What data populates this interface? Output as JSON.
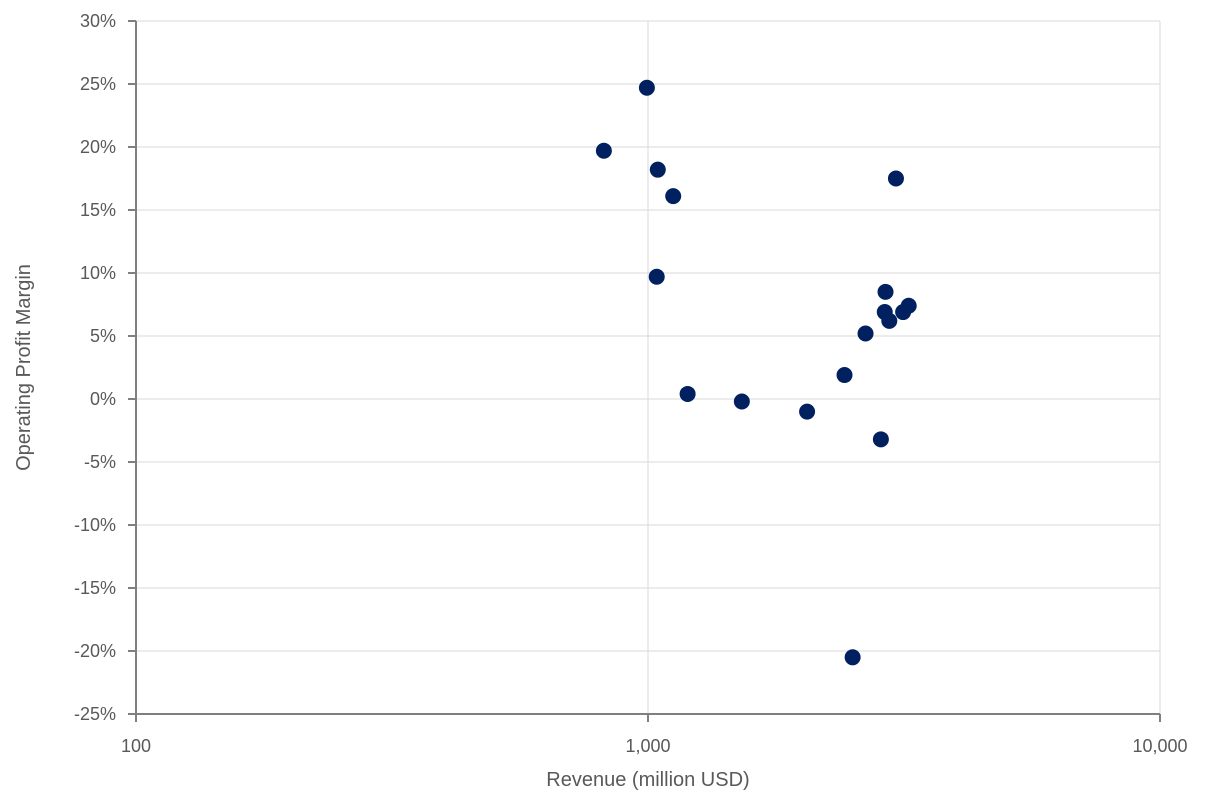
{
  "chart_data": {
    "type": "scatter",
    "xlabel": "Revenue (million USD)",
    "ylabel": "Operating Profit Margin",
    "x_scale": "log",
    "xlim": [
      100,
      10000
    ],
    "ylim": [
      -25,
      30
    ],
    "x_ticks": [
      100,
      1000,
      10000
    ],
    "x_tick_labels": [
      "100",
      "1,000",
      "10,000"
    ],
    "y_ticks": [
      30,
      25,
      20,
      15,
      10,
      5,
      0,
      -5,
      -10,
      -15,
      -20,
      -25
    ],
    "y_tick_labels": [
      "30%",
      "25%",
      "20%",
      "15%",
      "10%",
      "5%",
      "0%",
      "-5%",
      "-10%",
      "-15%",
      "-20%",
      "-25%"
    ],
    "grid": true,
    "marker_color": "#002060",
    "points": [
      {
        "x": 820,
        "y": 19.7
      },
      {
        "x": 995,
        "y": 24.7
      },
      {
        "x": 1045,
        "y": 18.2
      },
      {
        "x": 1120,
        "y": 16.1
      },
      {
        "x": 1040,
        "y": 9.7
      },
      {
        "x": 1195,
        "y": 0.4
      },
      {
        "x": 1525,
        "y": -0.2
      },
      {
        "x": 2045,
        "y": -1.0
      },
      {
        "x": 2420,
        "y": 1.9
      },
      {
        "x": 2510,
        "y": -20.5
      },
      {
        "x": 2660,
        "y": 5.2
      },
      {
        "x": 2850,
        "y": -3.2
      },
      {
        "x": 2900,
        "y": 6.9
      },
      {
        "x": 2910,
        "y": 8.5
      },
      {
        "x": 2960,
        "y": 6.2
      },
      {
        "x": 3050,
        "y": 17.5
      },
      {
        "x": 3150,
        "y": 6.9
      },
      {
        "x": 3230,
        "y": 7.4
      }
    ]
  }
}
